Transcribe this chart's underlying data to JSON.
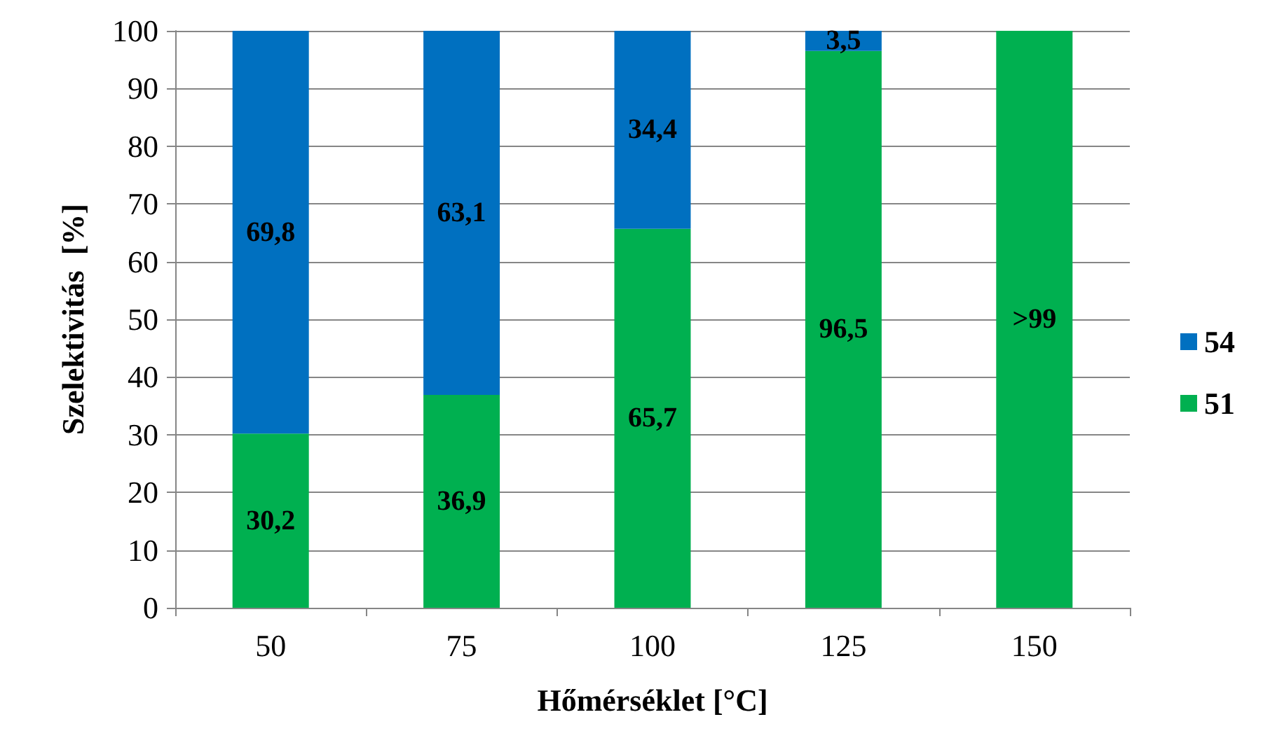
{
  "chart_data": {
    "type": "bar",
    "stacked": true,
    "xlabel": "Hőmérséklet [°C]",
    "ylabel": "Szelektivitás  [%]",
    "categories": [
      "50",
      "75",
      "100",
      "125",
      "150"
    ],
    "series": [
      {
        "name": "51",
        "color": "#00b050",
        "values": [
          30.2,
          36.9,
          65.7,
          96.5,
          100
        ],
        "value_labels": [
          "30,2",
          "36,9",
          "65,7",
          "96,5",
          ">99"
        ]
      },
      {
        "name": "54",
        "color": "#0070c0",
        "values": [
          69.8,
          63.1,
          34.4,
          3.5,
          null
        ],
        "value_labels": [
          "69,8",
          "63,1",
          "34,4",
          "3,5",
          null
        ]
      }
    ],
    "ylim": [
      0,
      100
    ],
    "yticks": [
      0,
      10,
      20,
      30,
      40,
      50,
      60,
      70,
      80,
      90,
      100
    ],
    "grid": "y",
    "legend": "right"
  }
}
